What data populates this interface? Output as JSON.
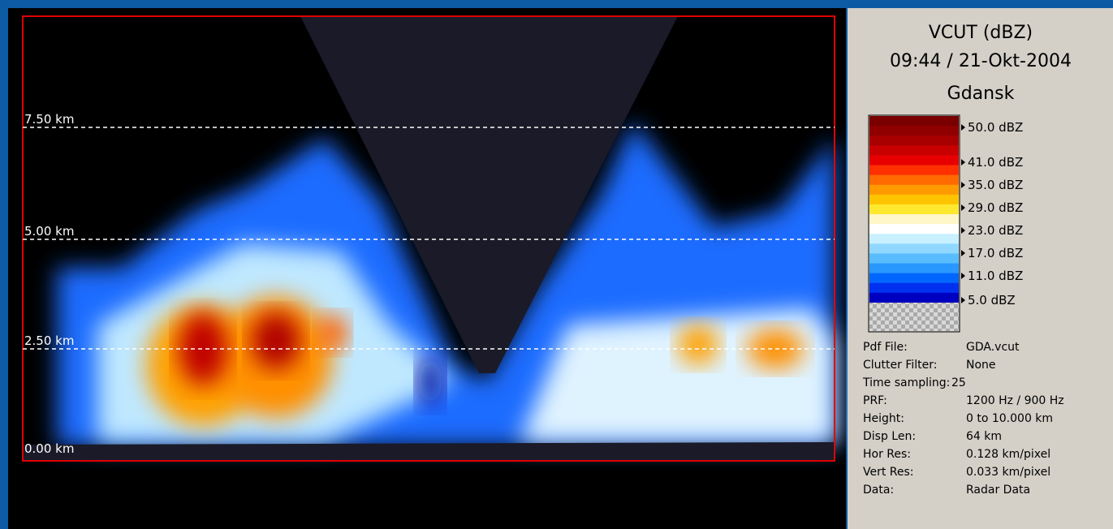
{
  "plot": {
    "height_labels": [
      "7.50 km",
      "5.00 km",
      "2.50 km",
      "0.00 km"
    ]
  },
  "panel": {
    "title": "VCUT (dBZ)",
    "datetime": "09:44 / 21-Okt-2004",
    "station": "Gdansk",
    "legend": [
      "50.0 dBZ",
      "41.0 dBZ",
      "35.0 dBZ",
      "29.0 dBZ",
      "23.0 dBZ",
      "17.0 dBZ",
      "11.0 dBZ",
      "5.0 dBZ"
    ],
    "info": [
      [
        "Pdf File:",
        "GDA.vcut"
      ],
      [
        "Clutter Filter:",
        "None"
      ],
      [
        "Time sampling:",
        "25"
      ],
      [
        "PRF:",
        "1200 Hz / 900 Hz"
      ],
      [
        "Height:",
        "0 to 10.000 km"
      ],
      [
        "Disp Len:",
        "64 km"
      ],
      [
        "Hor Res:",
        "0.128 km/pixel"
      ],
      [
        "Vert Res:",
        "0.033 km/pixel"
      ],
      [
        "Data:",
        "Radar Data"
      ]
    ]
  }
}
